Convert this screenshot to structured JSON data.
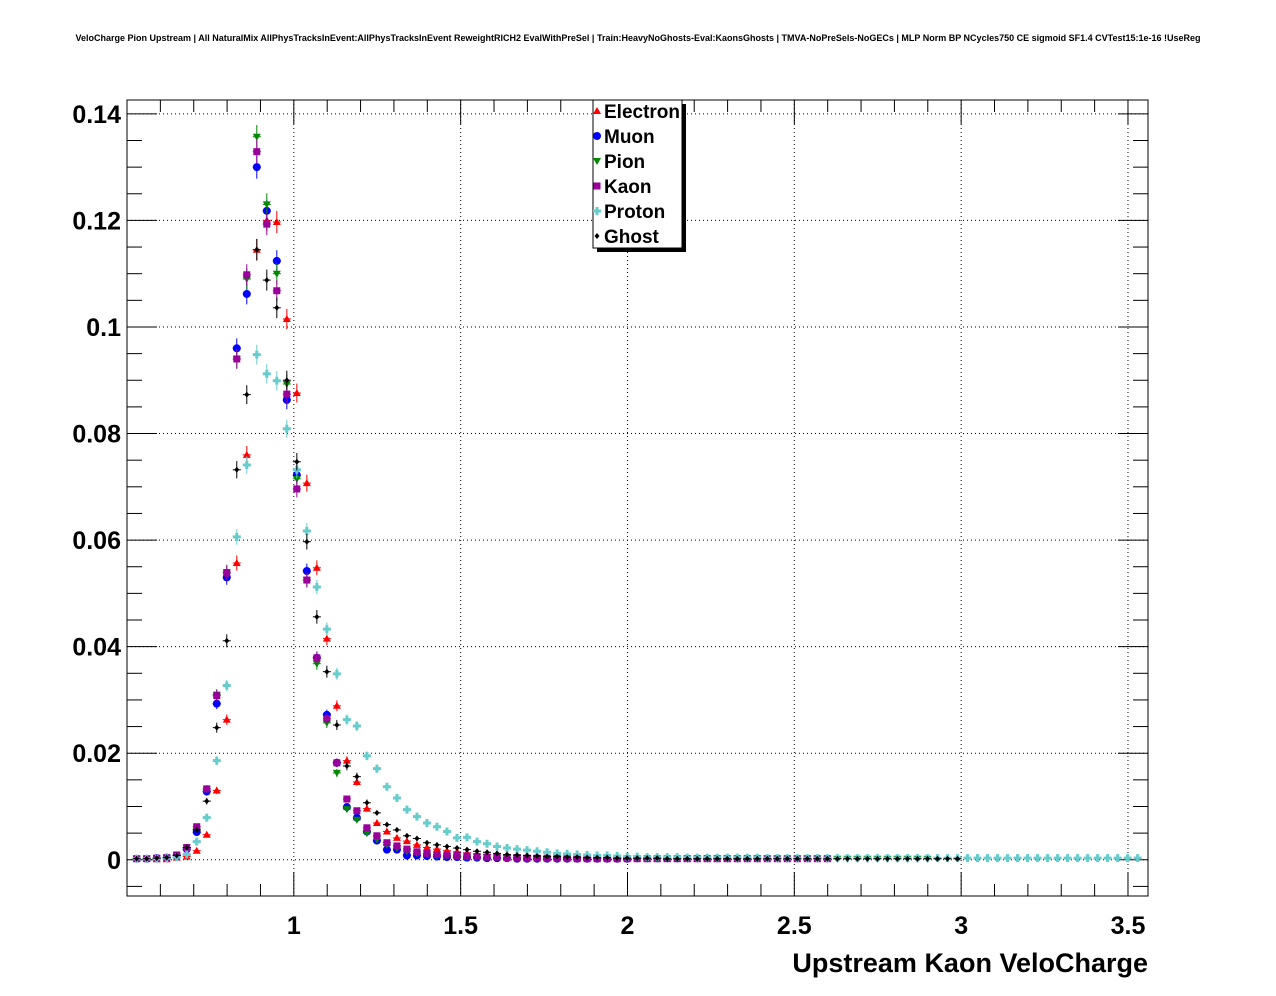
{
  "chart_data": {
    "type": "scatter",
    "title": "VeloCharge Pion Upstream | All NaturalMix AllPhysTracksInEvent:AllPhysTracksInEvent ReweightRICH2 EvalWithPreSel | Train:HeavyNoGhosts-Eval:KaonsGhosts | TMVA-NoPreSels-NoGECs | MLP Norm BP NCycles750 CE sigmoid SF1.4 CVTest15:1e-16 !UseReg",
    "xlabel": "Upstream Kaon VeloCharge",
    "ylabel": "",
    "xlim": [
      0.5,
      3.56
    ],
    "ylim": [
      -0.0068,
      0.1426
    ],
    "grid": true,
    "legend_position": "top-center",
    "x_ticks": [
      "1",
      "1.5",
      "2",
      "2.5",
      "3",
      "3.5"
    ],
    "x_tick_values": [
      1,
      1.5,
      2,
      2.5,
      3,
      3.5
    ],
    "y_ticks": [
      "0",
      "0.02",
      "0.04",
      "0.06",
      "0.08",
      "0.1",
      "0.12",
      "0.14"
    ],
    "y_tick_values": [
      0,
      0.02,
      0.04,
      0.06,
      0.08,
      0.1,
      0.12,
      0.14
    ],
    "x_start": 0.529,
    "bin_width": 0.03,
    "series": [
      {
        "name": "Electron",
        "color": "#ff0000",
        "marker": "triangle-up",
        "values": [
          0.0002,
          0.0002,
          0.0001,
          0.0001,
          0.0004,
          0.0006,
          0.0017,
          0.0047,
          0.013,
          0.0263,
          0.0557,
          0.076,
          0.1145,
          0.12,
          0.1197,
          0.1015,
          0.0876,
          0.0707,
          0.0548,
          0.0415,
          0.0289,
          0.0186,
          0.0146,
          0.0096,
          0.0069,
          0.0053,
          0.0041,
          0.0035,
          0.0028,
          0.0023,
          0.002,
          0.0017,
          0.0015,
          0.0013,
          0.0011,
          0.001,
          0.0009,
          0.0008,
          0.0007,
          0.0006,
          0.0006,
          0.0005,
          0.0005,
          0.0004,
          0.0004,
          0.0004,
          0.0003,
          0.0003,
          0.0003,
          0.0003,
          0.0003,
          0.0002,
          0.0002,
          0.0002,
          0.0002,
          0.0002,
          0.0002,
          0.0002,
          0.0002,
          0.0002
        ]
      },
      {
        "name": "Muon",
        "color": "#0000ff",
        "marker": "circle",
        "values": [
          0.0002,
          0.0002,
          0.0003,
          0.0004,
          0.0008,
          0.002,
          0.0052,
          0.0128,
          0.0293,
          0.053,
          0.096,
          0.1062,
          0.13,
          0.1218,
          0.1124,
          0.0863,
          0.0722,
          0.0542,
          0.0379,
          0.0272,
          0.0182,
          0.0099,
          0.0079,
          0.0053,
          0.0036,
          0.0019,
          0.0019,
          0.0008,
          0.0008,
          0.0007,
          0.0006,
          0.0005,
          0.0005,
          0.0004,
          0.0004,
          0.0003,
          0.0003,
          0.0003,
          0.0002,
          0.0002,
          0.0002,
          0.0002,
          0.0002,
          0.0002,
          0.0002,
          0.0002,
          0.0002,
          0.0002,
          0.0002,
          0.0002
        ]
      },
      {
        "name": "Pion",
        "color": "#008800",
        "marker": "triangle-down",
        "values": [
          0.0002,
          0.0002,
          0.0003,
          0.0004,
          0.0008,
          0.0023,
          0.0058,
          0.0133,
          0.031,
          0.054,
          0.094,
          0.109,
          0.1357,
          0.123,
          0.11,
          0.0893,
          0.0715,
          0.0525,
          0.0368,
          0.0257,
          0.0163,
          0.0095,
          0.0075,
          0.005,
          0.0038,
          0.0028,
          0.0022,
          0.0016,
          0.0012,
          0.001,
          0.0008,
          0.0007,
          0.0006,
          0.0005,
          0.0005,
          0.0004,
          0.0004,
          0.0003,
          0.0003,
          0.0003,
          0.0003,
          0.0002,
          0.0002,
          0.0002,
          0.0002,
          0.0002,
          0.0002,
          0.0002,
          0.0002,
          0.0002,
          0.0002,
          0.0002,
          0.0002,
          0.0002,
          0.0002,
          0.0002,
          0.0002,
          0.0002,
          0.0002,
          0.0002,
          0.0002,
          0.0002,
          0.0002,
          0.0002,
          0.0002,
          0.0002,
          0.0002,
          0.0002,
          0.0002,
          0.0002,
          0.0002,
          0.0002,
          0.0002,
          0.0002,
          0.0002,
          0.0002,
          0.0002,
          0.0002,
          0.0002,
          0.0002
        ]
      },
      {
        "name": "Kaon",
        "color": "#990099",
        "marker": "square",
        "values": [
          0.0002,
          0.0002,
          0.0003,
          0.0004,
          0.0009,
          0.0023,
          0.0062,
          0.0133,
          0.0308,
          0.0538,
          0.094,
          0.1098,
          0.1329,
          0.1193,
          0.1068,
          0.0874,
          0.0696,
          0.0525,
          0.0379,
          0.0265,
          0.0182,
          0.0114,
          0.0092,
          0.006,
          0.0045,
          0.0032,
          0.0026,
          0.002,
          0.0015,
          0.0012,
          0.001,
          0.0009,
          0.0008,
          0.0007,
          0.0006,
          0.0005,
          0.0005,
          0.0004,
          0.0004,
          0.0003,
          0.0003,
          0.0003,
          0.0003,
          0.0003,
          0.0002,
          0.0002,
          0.0002,
          0.0002,
          0.0002,
          0.0002,
          0.0002,
          0.0002,
          0.0002,
          0.0002,
          0.0002,
          0.0002,
          0.0002,
          0.0002,
          0.0002,
          0.0002,
          0.0002,
          0.0002,
          0.0002,
          0.0002,
          0.0002,
          0.0002,
          0.0002,
          0.0002,
          0.0002,
          0.0002
        ]
      },
      {
        "name": "Proton",
        "color": "#66cccc",
        "marker": "cross",
        "values": [
          0.0002,
          0.0002,
          0.0002,
          0.0003,
          0.0005,
          0.001,
          0.0034,
          0.0079,
          0.0186,
          0.0327,
          0.0606,
          0.0741,
          0.0948,
          0.0912,
          0.0899,
          0.0809,
          0.0732,
          0.0617,
          0.0512,
          0.0433,
          0.0349,
          0.0263,
          0.0251,
          0.0195,
          0.0171,
          0.0137,
          0.0116,
          0.0094,
          0.0081,
          0.0069,
          0.0062,
          0.0053,
          0.0041,
          0.0042,
          0.0034,
          0.003,
          0.0025,
          0.0022,
          0.002,
          0.0018,
          0.0016,
          0.0014,
          0.0012,
          0.0011,
          0.001,
          0.0009,
          0.0008,
          0.0008,
          0.0007,
          0.0006,
          0.0006,
          0.0005,
          0.0005,
          0.0005,
          0.0005,
          0.0004,
          0.0004,
          0.0004,
          0.0004,
          0.0004,
          0.0004,
          0.0004,
          0.0004,
          0.0003,
          0.0003,
          0.0003,
          0.0003,
          0.0003,
          0.0003,
          0.0003,
          0.0003,
          0.0003,
          0.0003,
          0.0003,
          0.0003,
          0.0003,
          0.0003,
          0.0003,
          0.0003,
          0.0003,
          0.0003,
          0.0003,
          0.0003,
          0.0003,
          0.0003,
          0.0003,
          0.0003,
          0.0003,
          0.0003,
          0.0003,
          0.0003,
          0.0003,
          0.0003,
          0.0003,
          0.0003,
          0.0003,
          0.0003,
          0.0003,
          0.0003,
          0.0003,
          0.0003
        ]
      },
      {
        "name": "Ghost",
        "color": "#000000",
        "marker": "diamond",
        "values": [
          0.0002,
          0.0002,
          0.0003,
          0.0004,
          0.0008,
          0.0023,
          0.0056,
          0.011,
          0.0248,
          0.0411,
          0.0732,
          0.0873,
          0.1145,
          0.1088,
          0.1036,
          0.09,
          0.0747,
          0.0597,
          0.0456,
          0.0353,
          0.0253,
          0.0176,
          0.0156,
          0.0107,
          0.0088,
          0.0066,
          0.0056,
          0.0045,
          0.004,
          0.0032,
          0.0028,
          0.0025,
          0.0022,
          0.0019,
          0.0016,
          0.0014,
          0.0012,
          0.001,
          0.0009,
          0.0008,
          0.0007,
          0.0006,
          0.0006,
          0.0005,
          0.0005,
          0.0004,
          0.0004,
          0.0004,
          0.0003,
          0.0003,
          0.0003,
          0.0003,
          0.0003,
          0.0002,
          0.0002,
          0.0002,
          0.0002,
          0.0002,
          0.0002,
          0.0002,
          0.0002,
          0.0002,
          0.0002,
          0.0002,
          0.0002,
          0.0002,
          0.0002,
          0.0002,
          0.0002,
          0.0002,
          0.0002,
          0.0002,
          0.0002,
          0.0002,
          0.0002,
          0.0002,
          0.0002,
          0.0002,
          0.0002,
          0.0002,
          0.0002,
          0.0002,
          0.0002
        ]
      }
    ]
  }
}
